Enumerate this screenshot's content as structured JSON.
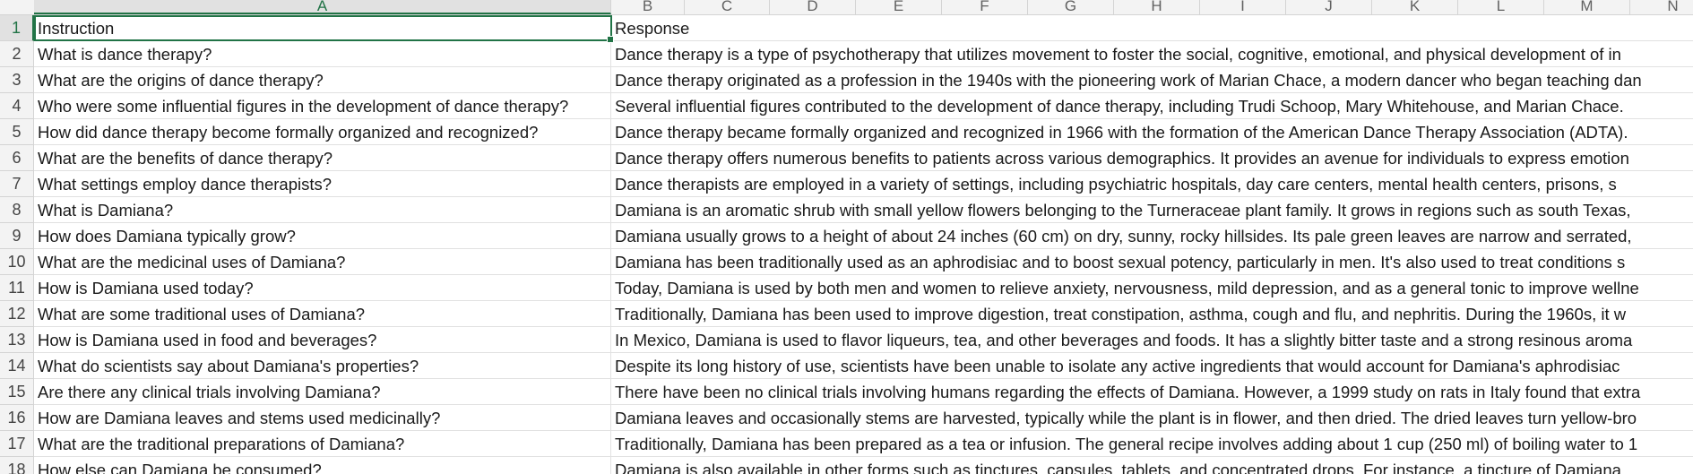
{
  "columns": [
    "A",
    "B",
    "C",
    "D",
    "E",
    "F",
    "G",
    "H",
    "I",
    "J",
    "K",
    "L",
    "M",
    "N"
  ],
  "rows": [
    {
      "n": "1",
      "instruction": "Instruction",
      "response": "Response"
    },
    {
      "n": "2",
      "instruction": "What is dance therapy?",
      "response": "Dance therapy is a type of psychotherapy that utilizes movement to foster the social, cognitive, emotional, and physical development of in"
    },
    {
      "n": "3",
      "instruction": "What are the origins of dance therapy?",
      "response": "Dance therapy originated as a profession in the 1940s with the pioneering work of Marian Chace, a modern dancer who began teaching dan"
    },
    {
      "n": "4",
      "instruction": "Who were some influential figures in the development of dance therapy?",
      "response": "Several influential figures contributed to the development of dance therapy, including Trudi Schoop, Mary Whitehouse, and Marian Chace."
    },
    {
      "n": "5",
      "instruction": "How did dance therapy become formally organized and recognized?",
      "response": "Dance therapy became formally organized and recognized in 1966 with the formation of the American Dance Therapy Association (ADTA)."
    },
    {
      "n": "6",
      "instruction": "What are the benefits of dance therapy?",
      "response": "Dance therapy offers numerous benefits to patients across various demographics. It provides an avenue for individuals to express emotion"
    },
    {
      "n": "7",
      "instruction": "What settings employ dance therapists?",
      "response": "Dance therapists are employed in a variety of settings, including psychiatric hospitals, day care centers, mental health centers, prisons, s"
    },
    {
      "n": "8",
      "instruction": "What is Damiana?",
      "response": "Damiana is an aromatic shrub with small yellow flowers belonging to the Turneraceae plant family. It grows in regions such as south Texas,"
    },
    {
      "n": "9",
      "instruction": "How does Damiana typically grow?",
      "response": "Damiana usually grows to a height of about 24 inches (60 cm) on dry, sunny, rocky hillsides. Its pale green leaves are narrow and serrated,"
    },
    {
      "n": "10",
      "instruction": "What are the medicinal uses of Damiana?",
      "response": "Damiana has been traditionally used as an aphrodisiac and to boost sexual potency, particularly in men. It's also used to treat conditions s"
    },
    {
      "n": "11",
      "instruction": "How is Damiana used today?",
      "response": "Today, Damiana is used by both men and women to relieve anxiety, nervousness, mild depression, and as a general tonic to improve wellne"
    },
    {
      "n": "12",
      "instruction": "What are some traditional uses of Damiana?",
      "response": "Traditionally, Damiana has been used to improve digestion, treat constipation, asthma, cough and flu, and nephritis. During the 1960s, it w"
    },
    {
      "n": "13",
      "instruction": "How is Damiana used in food and beverages?",
      "response": "In Mexico, Damiana is used to flavor liqueurs, tea, and other beverages and foods. It has a slightly bitter taste and a strong resinous aroma"
    },
    {
      "n": "14",
      "instruction": "What do scientists say about Damiana's properties?",
      "response": "Despite its long history of use, scientists have been unable to isolate any active ingredients that would account for Damiana's aphrodisiac"
    },
    {
      "n": "15",
      "instruction": "Are there any clinical trials involving Damiana?",
      "response": "There have been no clinical trials involving humans regarding the effects of Damiana. However, a 1999 study on rats in Italy found that extra"
    },
    {
      "n": "16",
      "instruction": "How are Damiana leaves and stems used medicinally?",
      "response": "Damiana leaves and occasionally stems are harvested, typically while the plant is in flower, and then dried. The dried leaves turn yellow-bro"
    },
    {
      "n": "17",
      "instruction": "What are the traditional preparations of Damiana?",
      "response": "Traditionally, Damiana has been prepared as a tea or infusion. The general recipe involves adding about 1 cup (250 ml) of boiling water to 1"
    },
    {
      "n": "18",
      "instruction": "How else can Damiana be consumed?",
      "response": "Damiana is also available in other forms such as tinctures, capsules, tablets, and concentrated drops. For instance, a tincture of Damiana"
    }
  ],
  "colors": {
    "accent": "#217346",
    "header_bg": "#f3f3f3",
    "gridline": "#e1e1e1"
  }
}
